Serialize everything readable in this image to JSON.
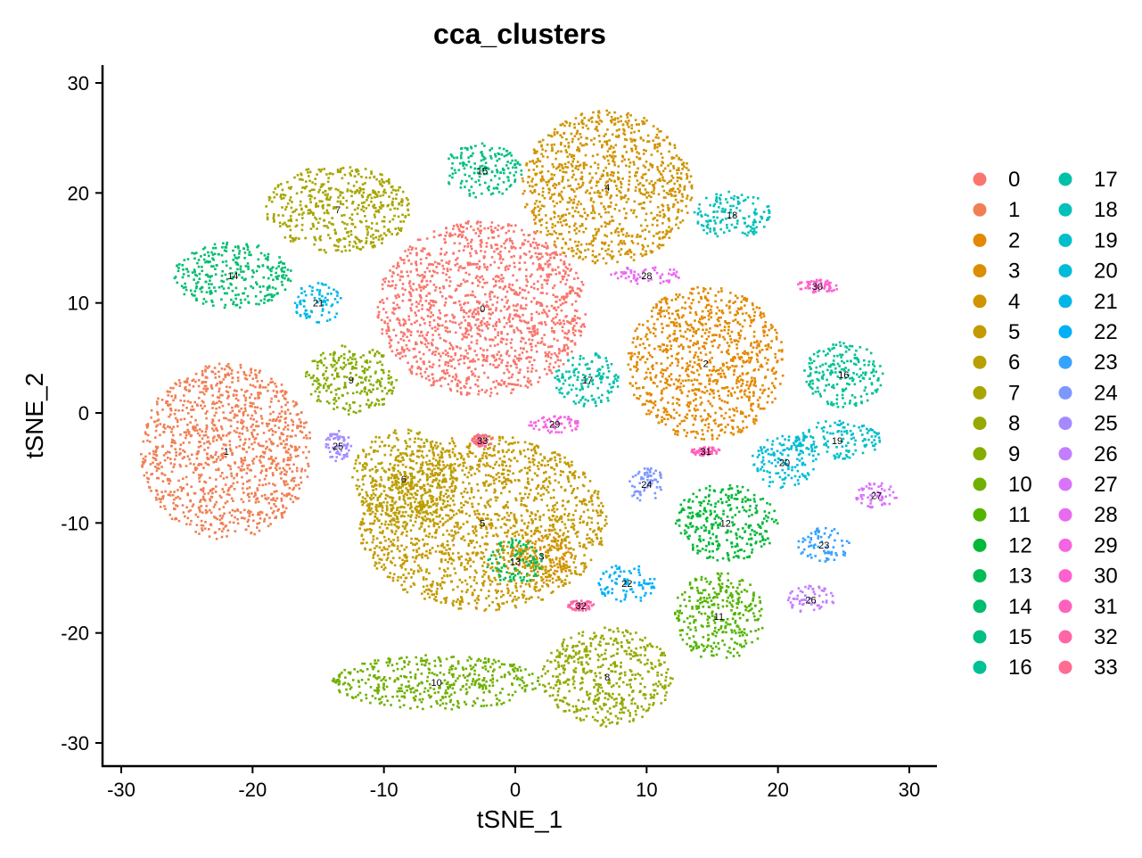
{
  "chart_data": {
    "type": "scatter",
    "title": "cca_clusters",
    "xlabel": "tSNE_1",
    "ylabel": "tSNE_2",
    "xlim": [
      -31.5,
      32
    ],
    "ylim": [
      -32,
      31.5
    ],
    "xticks": [
      -30,
      -20,
      -10,
      0,
      10,
      20,
      30
    ],
    "yticks": [
      -30,
      -20,
      -10,
      0,
      10,
      20,
      30
    ],
    "xtick_labels": [
      "-30",
      "-20",
      "-10",
      "0",
      "10",
      "20",
      "30"
    ],
    "ytick_labels": [
      "-30",
      "-20",
      "-10",
      "0",
      "10",
      "20",
      "30"
    ],
    "grid": false,
    "legend_position": "right",
    "clusters": [
      {
        "name": "0",
        "color": "#F8766D",
        "cx": -2.5,
        "cy": 9.5,
        "rx": 8.0,
        "ry": 8.0
      },
      {
        "name": "1",
        "color": "#F07F54",
        "cx": -22,
        "cy": -3.5,
        "rx": 6.5,
        "ry": 8.0
      },
      {
        "name": "2",
        "color": "#E38900",
        "cx": 14.5,
        "cy": 4.5,
        "rx": 6.0,
        "ry": 7.0
      },
      {
        "name": "3",
        "color": "#DB8E00",
        "cx": 2,
        "cy": -13,
        "rx": 2.5,
        "ry": 2.5
      },
      {
        "name": "4",
        "color": "#D09400",
        "cx": 7,
        "cy": 20.5,
        "rx": 6.5,
        "ry": 7.0
      },
      {
        "name": "5",
        "color": "#C49A00",
        "cx": -2.5,
        "cy": -10,
        "rx": 9.5,
        "ry": 8.0
      },
      {
        "name": "6",
        "color": "#B7A000",
        "cx": -8.5,
        "cy": -6,
        "rx": 4.0,
        "ry": 4.5
      },
      {
        "name": "7",
        "color": "#A8A500",
        "cx": -13.5,
        "cy": 18.5,
        "rx": 5.5,
        "ry": 4.0
      },
      {
        "name": "8",
        "color": "#97A900",
        "cx": 7,
        "cy": -24,
        "rx": 5.0,
        "ry": 4.5
      },
      {
        "name": "9",
        "color": "#85AD00",
        "cx": -12.5,
        "cy": 3,
        "rx": 3.5,
        "ry": 3.2
      },
      {
        "name": "10",
        "color": "#6FB000",
        "cx": -6,
        "cy": -24.5,
        "rx": 8.0,
        "ry": 2.5
      },
      {
        "name": "11",
        "color": "#53B400",
        "cx": 15.5,
        "cy": -18.5,
        "rx": 3.5,
        "ry": 4.0
      },
      {
        "name": "12",
        "color": "#00B937",
        "cx": 16,
        "cy": -10,
        "rx": 4.0,
        "ry": 3.5
      },
      {
        "name": "13",
        "color": "#00BB56",
        "cx": 0,
        "cy": -13.5,
        "rx": 2.2,
        "ry": 2.0
      },
      {
        "name": "14",
        "color": "#00BD6E",
        "cx": -21.5,
        "cy": 12.5,
        "rx": 4.5,
        "ry": 3.0
      },
      {
        "name": "15",
        "color": "#00BF83",
        "cx": -2.5,
        "cy": 22,
        "rx": 3.0,
        "ry": 2.5
      },
      {
        "name": "16",
        "color": "#00C096",
        "cx": 25,
        "cy": 3.5,
        "rx": 3.0,
        "ry": 3.0
      },
      {
        "name": "17",
        "color": "#00C1A8",
        "cx": 5.5,
        "cy": 3,
        "rx": 2.5,
        "ry": 2.5
      },
      {
        "name": "18",
        "color": "#00C0BA",
        "cx": 16.5,
        "cy": 18,
        "rx": 3.0,
        "ry": 2.2
      },
      {
        "name": "19",
        "color": "#00BECA",
        "cx": 24.5,
        "cy": -2.5,
        "rx": 3.5,
        "ry": 1.8
      },
      {
        "name": "20",
        "color": "#00BBDA",
        "cx": 20.5,
        "cy": -4.5,
        "rx": 2.5,
        "ry": 2.5
      },
      {
        "name": "21",
        "color": "#00B6E8",
        "cx": -15,
        "cy": 10,
        "rx": 2.0,
        "ry": 1.8
      },
      {
        "name": "22",
        "color": "#00B0F6",
        "cx": 8.5,
        "cy": -15.5,
        "rx": 2.2,
        "ry": 1.8
      },
      {
        "name": "23",
        "color": "#35A2FF",
        "cx": 23.5,
        "cy": -12,
        "rx": 2.0,
        "ry": 1.6
      },
      {
        "name": "24",
        "color": "#7E97FF",
        "cx": 10,
        "cy": -6.5,
        "rx": 1.5,
        "ry": 1.6
      },
      {
        "name": "25",
        "color": "#A58AFF",
        "cx": -13.5,
        "cy": -3,
        "rx": 1.0,
        "ry": 1.4
      },
      {
        "name": "26",
        "color": "#C37DFF",
        "cx": 22.5,
        "cy": -17,
        "rx": 1.8,
        "ry": 1.3
      },
      {
        "name": "27",
        "color": "#D973FC",
        "cx": 27.5,
        "cy": -7.5,
        "rx": 1.6,
        "ry": 1.2
      },
      {
        "name": "28",
        "color": "#E96AF2",
        "cx": 10,
        "cy": 12.5,
        "rx": 3.0,
        "ry": 0.8
      },
      {
        "name": "29",
        "color": "#F564E3",
        "cx": 3,
        "cy": -1,
        "rx": 2.0,
        "ry": 0.9
      },
      {
        "name": "30",
        "color": "#FE61CF",
        "cx": 23,
        "cy": 11.5,
        "rx": 1.7,
        "ry": 0.6
      },
      {
        "name": "31",
        "color": "#FF62BC",
        "cx": 14.5,
        "cy": -3.5,
        "rx": 1.2,
        "ry": 0.4
      },
      {
        "name": "32",
        "color": "#FF66A6",
        "cx": 5,
        "cy": -17.5,
        "rx": 1.0,
        "ry": 0.5
      },
      {
        "name": "33",
        "color": "#FF6C90",
        "cx": -2.5,
        "cy": -2.5,
        "rx": 0.8,
        "ry": 0.6
      }
    ]
  }
}
